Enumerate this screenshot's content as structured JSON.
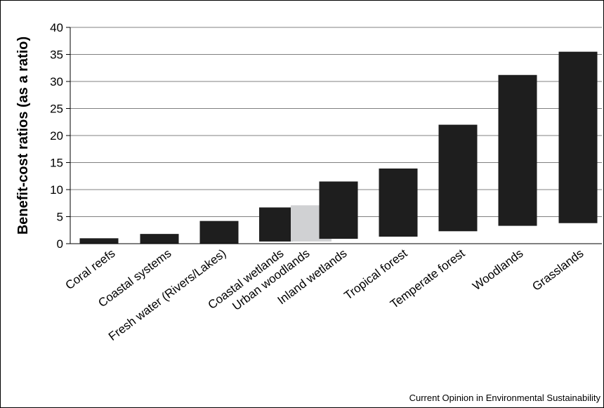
{
  "chart_data": {
    "type": "bar",
    "subtype": "floating-range",
    "ylabel": "Benefit-cost ratios (as a ratio)",
    "ylim": [
      0,
      40
    ],
    "yticks": [
      0,
      5,
      10,
      15,
      20,
      25,
      30,
      35,
      40
    ],
    "grid": "horizontal",
    "categories": [
      "Coral reefs",
      "Coastal systems",
      "Fresh water (Rivers/Lakes)",
      "Coastal wetlands",
      "Urban woodlands",
      "Inland wetlands",
      "Tropical forest",
      "Temperate forest",
      "Woodlands",
      "Grasslands"
    ],
    "ranges": [
      {
        "category": "Coral reefs",
        "low": 0,
        "high": 1.0,
        "color": "#1e1e1e"
      },
      {
        "category": "Coastal systems",
        "low": 0,
        "high": 1.8,
        "color": "#1e1e1e"
      },
      {
        "category": "Fresh water (Rivers/Lakes)",
        "low": 0,
        "high": 4.2,
        "color": "#1e1e1e"
      },
      {
        "category": "Coastal wetlands",
        "low": 0.4,
        "high": 6.7,
        "color": "#1e1e1e"
      },
      {
        "category": "Urban woodlands",
        "low": 0.4,
        "high": 7.1,
        "color": "#d0d1d3"
      },
      {
        "category": "Inland wetlands",
        "low": 0.9,
        "high": 11.5,
        "color": "#1e1e1e"
      },
      {
        "category": "Tropical forest",
        "low": 1.3,
        "high": 13.9,
        "color": "#1e1e1e"
      },
      {
        "category": "Temperate forest",
        "low": 2.3,
        "high": 22.0,
        "color": "#1e1e1e"
      },
      {
        "category": "Woodlands",
        "low": 3.3,
        "high": 31.2,
        "color": "#1e1e1e"
      },
      {
        "category": "Grasslands",
        "low": 3.8,
        "high": 35.5,
        "color": "#1e1e1e"
      }
    ]
  },
  "source": "Current Opinion in Environmental Sustainability"
}
